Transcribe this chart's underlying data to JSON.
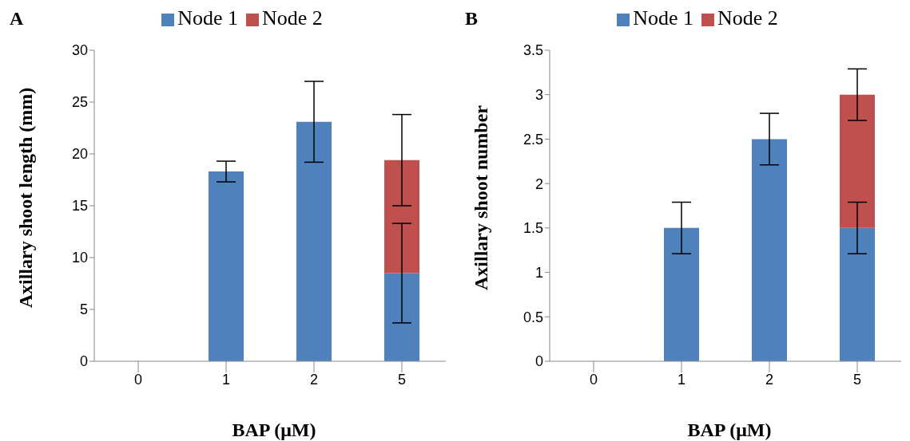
{
  "chart_data": [
    {
      "type": "bar",
      "title": "A",
      "xlabel": "BAP (μM)",
      "ylabel": "Axillary shoot length (mm)",
      "categories": [
        "0",
        "1",
        "2",
        "5"
      ],
      "stacked": true,
      "ylim": [
        0,
        30
      ],
      "yticks": [
        0,
        5,
        10,
        15,
        20,
        25,
        30
      ],
      "grid": false,
      "legend": "top",
      "series": [
        {
          "name": "Node 1",
          "color": "#4f81bd",
          "values": [
            0,
            18.3,
            23.1,
            8.5
          ],
          "errors": [
            null,
            1.0,
            3.9,
            4.8
          ]
        },
        {
          "name": "Node 2",
          "color": "#c0504d",
          "values": [
            null,
            null,
            null,
            10.9
          ],
          "errors": [
            null,
            null,
            null,
            4.4
          ]
        }
      ]
    },
    {
      "type": "bar",
      "title": "B",
      "xlabel": "BAP (μM)",
      "ylabel": "Axillary shoot number",
      "categories": [
        "0",
        "1",
        "2",
        "5"
      ],
      "stacked": true,
      "ylim": [
        0,
        3.5
      ],
      "yticks": [
        0,
        0.5,
        1,
        1.5,
        2,
        2.5,
        3,
        3.5
      ],
      "grid": false,
      "legend": "top",
      "series": [
        {
          "name": "Node 1",
          "color": "#4f81bd",
          "values": [
            0,
            1.5,
            2.5,
            1.5
          ],
          "errors": [
            null,
            0.29,
            0.29,
            0.29
          ]
        },
        {
          "name": "Node 2",
          "color": "#c0504d",
          "values": [
            null,
            null,
            null,
            1.5
          ],
          "errors": [
            null,
            null,
            null,
            0.29
          ]
        }
      ]
    }
  ]
}
